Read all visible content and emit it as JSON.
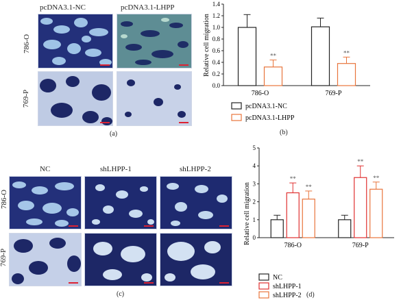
{
  "panels": {
    "a": {
      "caption": "(a)",
      "col_labels": [
        "pcDNA3.1-NC",
        "pcDNA3.1-LHPP"
      ],
      "row_labels": [
        "786-O",
        "769-P"
      ]
    },
    "b": {
      "caption": "(b)"
    },
    "c": {
      "caption": "(c)",
      "col_labels": [
        "NC",
        "shLHPP-1",
        "shLHPP-2"
      ],
      "row_labels": [
        "786-O",
        "769-P"
      ]
    },
    "d": {
      "caption": "(d)"
    }
  },
  "chart_data": [
    {
      "id": "b",
      "type": "bar",
      "ylabel": "Relative cell migration",
      "xlabel": "",
      "ylim": [
        0,
        1.4
      ],
      "yticks": [
        "0.0",
        "0.2",
        "0.4",
        "0.6",
        "0.8",
        "1.0",
        "1.2",
        "1.4"
      ],
      "categories": [
        "786-O",
        "769-P"
      ],
      "series": [
        {
          "name": "pcDNA3.1-NC",
          "color": "#222222",
          "values": [
            1.0,
            1.01
          ],
          "errors": [
            0.22,
            0.15
          ],
          "sig": [
            "",
            ""
          ]
        },
        {
          "name": "pcDNA3.1-LHPP",
          "color": "#e8743b",
          "values": [
            0.32,
            0.38
          ],
          "errors": [
            0.12,
            0.11
          ],
          "sig": [
            "**",
            "**"
          ]
        }
      ],
      "legend": "bottom"
    },
    {
      "id": "d",
      "type": "bar",
      "ylabel": "Relative cell migration",
      "xlabel": "",
      "ylim": [
        0,
        5
      ],
      "yticks": [
        "0",
        "1",
        "2",
        "3",
        "4",
        "5"
      ],
      "categories": [
        "786-O",
        "769-P"
      ],
      "series": [
        {
          "name": "NC",
          "color": "#222222",
          "values": [
            1.0,
            1.0
          ],
          "errors": [
            0.25,
            0.25
          ],
          "sig": [
            "",
            ""
          ]
        },
        {
          "name": "shLHPP-1",
          "color": "#e03030",
          "values": [
            2.5,
            3.35
          ],
          "errors": [
            0.55,
            0.65
          ],
          "sig": [
            "**",
            "**"
          ]
        },
        {
          "name": "shLHPP-2",
          "color": "#e8743b",
          "values": [
            2.15,
            2.7
          ],
          "errors": [
            0.45,
            0.4
          ],
          "sig": [
            "**",
            "**"
          ]
        }
      ],
      "legend": "bottom"
    }
  ]
}
